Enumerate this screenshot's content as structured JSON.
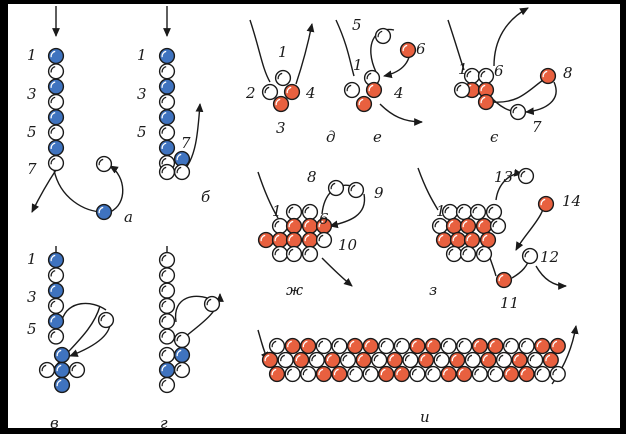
{
  "colors": {
    "background": "#ffffff",
    "frame": "#000000",
    "line": "#1a1a1a",
    "blue": "#3f73bf",
    "red": "#e8603f",
    "white": "#ffffff"
  },
  "panels": {
    "a": {
      "letter": "а",
      "numbers": [
        "1",
        "3",
        "5",
        "7"
      ]
    },
    "b": {
      "letter": "б",
      "numbers": [
        "1",
        "3",
        "5",
        "7"
      ]
    },
    "v": {
      "letter": "в",
      "numbers": [
        "1",
        "3",
        "5"
      ]
    },
    "g": {
      "letter": "г"
    },
    "d": {
      "letter": "д",
      "numbers": [
        "1",
        "2",
        "3",
        "4"
      ]
    },
    "e": {
      "letter": "е",
      "numbers": [
        "1",
        "4",
        "5",
        "6"
      ]
    },
    "ye": {
      "letter": "є",
      "numbers": [
        "1",
        "6",
        "7",
        "8"
      ]
    },
    "zh": {
      "letter": "ж",
      "numbers": [
        "1",
        "6",
        "8",
        "9",
        "10"
      ]
    },
    "z": {
      "letter": "з",
      "numbers": [
        "1",
        "11",
        "12",
        "13",
        "14"
      ]
    },
    "i": {
      "letter": "и"
    }
  }
}
